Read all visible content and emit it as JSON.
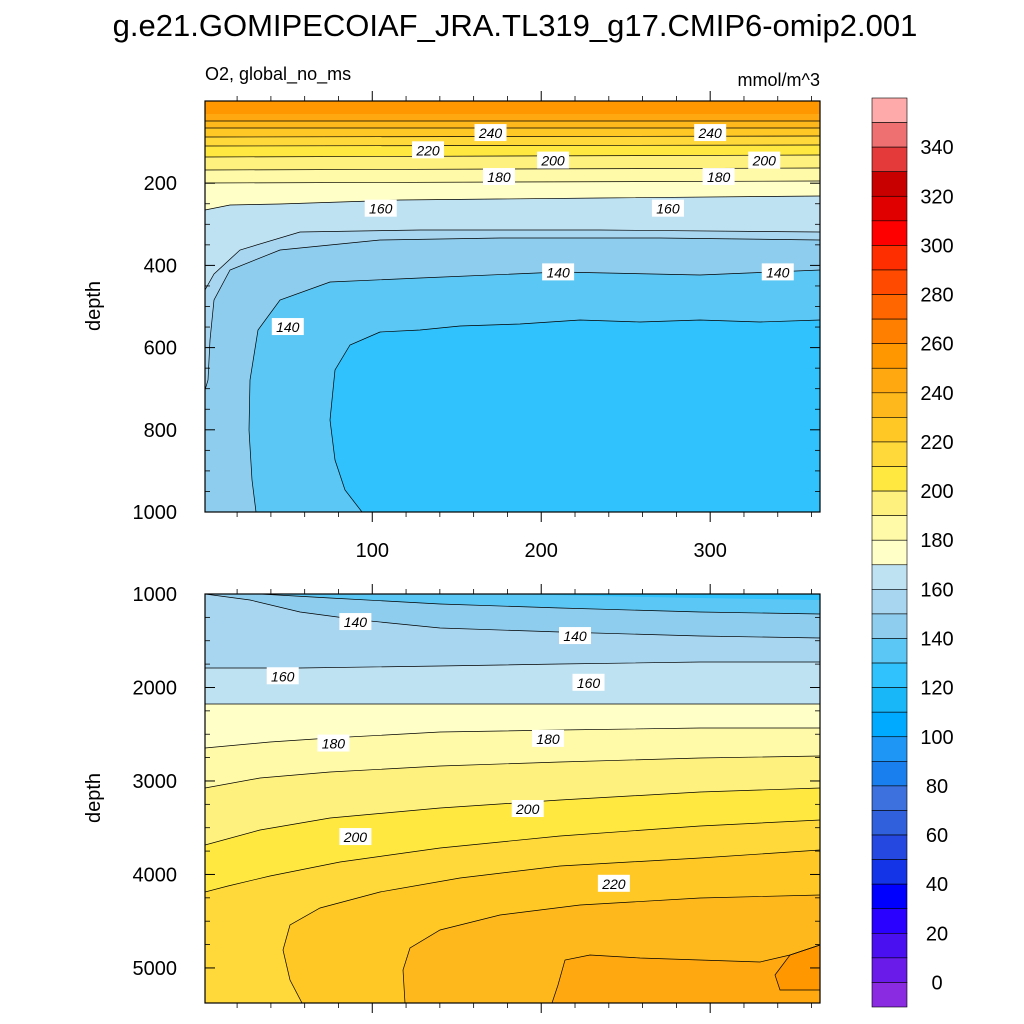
{
  "title": "g.e21.GOMIPECOIAF_JRA.TL319_g17.CMIP6-omip2.001",
  "units": "mmol/m^3",
  "chart_data": [
    {
      "type": "contour",
      "panel": "upper",
      "subtitle_left": "O2, global_no_ms",
      "subtitle_right": "mmol/m^3",
      "ylabel": "depth",
      "xlim": [
        1,
        365
      ],
      "ylim": [
        0,
        1000
      ],
      "y_reversed": true,
      "x_ticks": [
        100,
        200,
        300
      ],
      "x_tick_labels": [
        "100",
        "200",
        "300"
      ],
      "y_ticks": [
        200,
        400,
        600,
        800,
        1000
      ],
      "y_tick_labels": [
        "200",
        "400",
        "600",
        "800",
        "1000"
      ],
      "levels_depth": [
        0,
        70,
        220,
        300,
        460,
        600,
        800,
        1000
      ],
      "contour_labels": [
        {
          "text": "240",
          "x": 170,
          "depth": 78
        },
        {
          "text": "240",
          "x": 300,
          "depth": 78
        },
        {
          "text": "220",
          "x": 133,
          "depth": 120
        },
        {
          "text": "200",
          "x": 207,
          "depth": 145
        },
        {
          "text": "200",
          "x": 332,
          "depth": 145
        },
        {
          "text": "180",
          "x": 175,
          "depth": 185
        },
        {
          "text": "180",
          "x": 305,
          "depth": 185
        },
        {
          "text": "160",
          "x": 105,
          "depth": 262
        },
        {
          "text": "160",
          "x": 275,
          "depth": 262
        },
        {
          "text": "140",
          "x": 210,
          "depth": 417
        },
        {
          "text": "140",
          "x": 340,
          "depth": 417
        },
        {
          "text": "140",
          "x": 50,
          "depth": 550
        }
      ]
    },
    {
      "type": "contour",
      "panel": "lower",
      "ylabel": "depth",
      "xlim": [
        1,
        365
      ],
      "ylim": [
        1000,
        5375
      ],
      "y_reversed": true,
      "y_ticks": [
        1000,
        2000,
        3000,
        4000,
        5000
      ],
      "y_tick_labels": [
        "1000",
        "2000",
        "3000",
        "4000",
        "5000"
      ],
      "contour_labels": [
        {
          "text": "140",
          "x": 90,
          "depth": 1300
        },
        {
          "text": "140",
          "x": 220,
          "depth": 1450
        },
        {
          "text": "160",
          "x": 47,
          "depth": 1880
        },
        {
          "text": "160",
          "x": 228,
          "depth": 1950
        },
        {
          "text": "180",
          "x": 77,
          "depth": 2600
        },
        {
          "text": "180",
          "x": 204,
          "depth": 2550
        },
        {
          "text": "200",
          "x": 90,
          "depth": 3600
        },
        {
          "text": "200",
          "x": 192,
          "depth": 3300
        },
        {
          "text": "220",
          "x": 243,
          "depth": 4100
        }
      ]
    }
  ],
  "colorbar": {
    "labels": [
      "0",
      "20",
      "40",
      "60",
      "80",
      "100",
      "120",
      "140",
      "160",
      "180",
      "200",
      "220",
      "240",
      "260",
      "280",
      "300",
      "320",
      "340"
    ],
    "colors": [
      "#8a2be2",
      "#6a1bea",
      "#4b10f0",
      "#2a00ff",
      "#0000ff",
      "#1434e8",
      "#2448e0",
      "#3060dc",
      "#3d72de",
      "#1a7fee",
      "#1e96f5",
      "#00aaff",
      "#17b7f8",
      "#2fc2fc",
      "#5ac7f5",
      "#8fcdee",
      "#a8d6f0",
      "#bfe2f3",
      "#ffffc8",
      "#fffaa8",
      "#fff17d",
      "#ffe840",
      "#ffd83a",
      "#ffc825",
      "#ffb81c",
      "#ffa810",
      "#ff9800",
      "#ff8000",
      "#ff6600",
      "#ff4a00",
      "#ff2e00",
      "#ff0000",
      "#e00000",
      "#c80000",
      "#e53a3a",
      "#ee7070",
      "#ffaaaa"
    ]
  },
  "colors": {
    "o2_250": "#ff9800",
    "o2_240": "#ffa810",
    "o2_230": "#ffb81c",
    "o2_220": "#ffc825",
    "o2_210": "#ffd83a",
    "o2_200": "#ffe840",
    "o2_190": "#fff17d",
    "o2_180": "#fffaa8",
    "o2_170": "#ffffc8",
    "o2_160": "#bfe2f3",
    "o2_150": "#a8d6f0",
    "o2_140": "#8fcdee",
    "o2_130": "#5ac7f5",
    "o2_120": "#2fc2fc"
  }
}
